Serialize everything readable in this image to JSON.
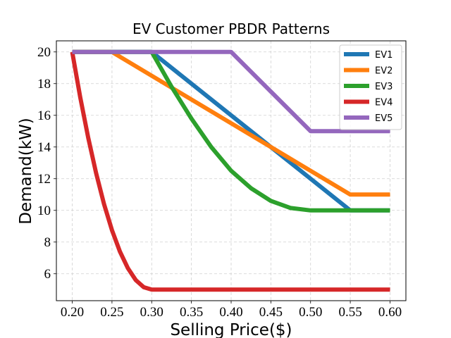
{
  "chart_data": {
    "type": "line",
    "title": "EV Customer PBDR Patterns",
    "xlabel": "Selling Price($)",
    "ylabel": "Demand(kW)",
    "xlim": [
      0.18,
      0.62
    ],
    "ylim": [
      4.3,
      20.7
    ],
    "xticks": [
      "0.20",
      "0.25",
      "0.30",
      "0.35",
      "0.40",
      "0.45",
      "0.50",
      "0.55",
      "0.60"
    ],
    "yticks": [
      "6",
      "8",
      "10",
      "12",
      "14",
      "16",
      "18",
      "20"
    ],
    "grid": true,
    "legend_position": "top-right",
    "series": [
      {
        "name": "EV1",
        "color": "#1f77b4",
        "x": [
          0.2,
          0.3,
          0.55,
          0.6
        ],
        "y": [
          20,
          20,
          10,
          10
        ]
      },
      {
        "name": "EV2",
        "color": "#ff7f0e",
        "x": [
          0.2,
          0.25,
          0.55,
          0.6
        ],
        "y": [
          20,
          20,
          11,
          11
        ]
      },
      {
        "name": "EV3",
        "color": "#2ca02c",
        "x": [
          0.2,
          0.3,
          0.325,
          0.35,
          0.375,
          0.4,
          0.425,
          0.45,
          0.475,
          0.5,
          0.55,
          0.6
        ],
        "y": [
          20,
          20,
          17.8,
          15.8,
          14.0,
          12.5,
          11.4,
          10.6,
          10.15,
          10,
          10,
          10
        ]
      },
      {
        "name": "EV4",
        "color": "#d62728",
        "x": [
          0.2,
          0.21,
          0.22,
          0.23,
          0.24,
          0.25,
          0.26,
          0.27,
          0.28,
          0.29,
          0.3,
          0.6
        ],
        "y": [
          20,
          17.15,
          14.6,
          12.35,
          10.4,
          8.75,
          7.4,
          6.35,
          5.6,
          5.15,
          5,
          5
        ]
      },
      {
        "name": "EV5",
        "color": "#9467bd",
        "x": [
          0.2,
          0.4,
          0.5,
          0.6
        ],
        "y": [
          20,
          20,
          15,
          15
        ]
      }
    ]
  }
}
